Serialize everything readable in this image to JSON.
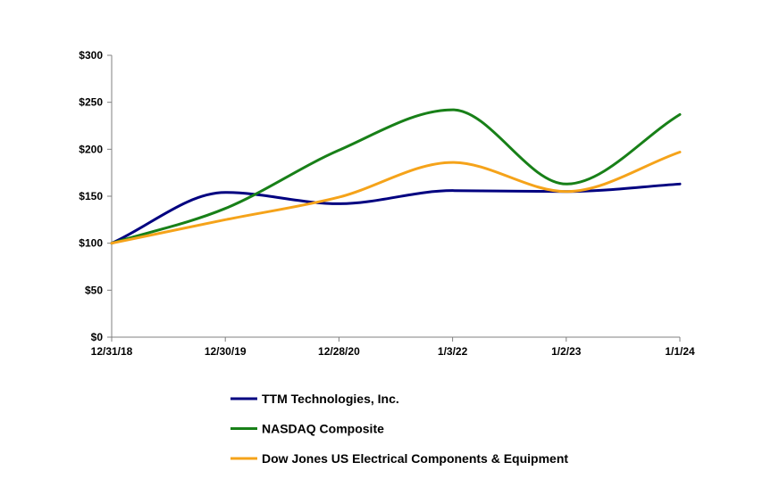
{
  "chart_data": {
    "type": "line",
    "title": "",
    "xlabel": "",
    "ylabel": "",
    "categories": [
      "12/31/18",
      "12/30/19",
      "12/28/20",
      "1/3/22",
      "1/2/23",
      "1/1/24"
    ],
    "ylim": [
      0,
      300
    ],
    "yticks": [
      0,
      50,
      100,
      150,
      200,
      250,
      300
    ],
    "ytick_labels": [
      "$0",
      "$50",
      "$100",
      "$150",
      "$200",
      "$250",
      "$300"
    ],
    "grid": false,
    "legend_position": "bottom",
    "series": [
      {
        "name": "TTM Technologies, Inc.",
        "color": "#000080",
        "values": [
          100,
          154,
          142,
          156,
          155,
          163
        ]
      },
      {
        "name": "NASDAQ Composite",
        "color": "#188018",
        "values": [
          100,
          137,
          199,
          242,
          163,
          237
        ]
      },
      {
        "name": "Dow Jones US Electrical Components & Equipment",
        "color": "#f5a31a",
        "values": [
          100,
          125,
          149,
          186,
          155,
          197
        ]
      }
    ]
  }
}
